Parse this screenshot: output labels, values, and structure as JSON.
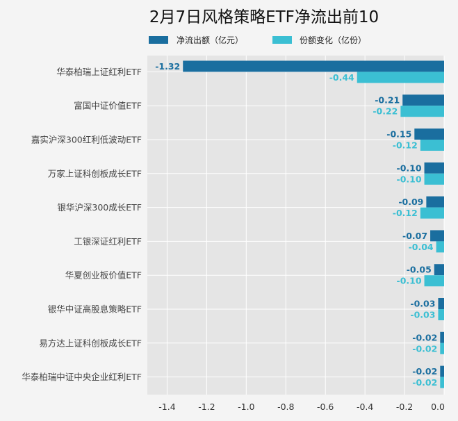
{
  "chart_data": {
    "type": "bar",
    "orientation": "horizontal",
    "title": "2月7日风格策略ETF净流出前10",
    "categories": [
      "华泰柏瑞上证红利ETF",
      "富国中证价值ETF",
      "嘉实沪深300红利低波动ETF",
      "万家上证科创板成长ETF",
      "银华沪深300成长ETF",
      "工银深证红利ETF",
      "华夏创业板价值ETF",
      "银华中证高股息策略ETF",
      "易方达上证科创板成长ETF",
      "华泰柏瑞中证中央企业红利ETF"
    ],
    "series": [
      {
        "name": "净流出额（亿元）",
        "color": "#1a6e9f",
        "values": [
          -1.32,
          -0.21,
          -0.15,
          -0.1,
          -0.09,
          -0.07,
          -0.05,
          -0.03,
          -0.02,
          -0.02
        ],
        "labels": [
          "-1.32",
          "-0.21",
          "-0.15",
          "-0.10",
          "-0.09",
          "-0.07",
          "-0.05",
          "-0.03",
          "-0.02",
          "-0.02"
        ]
      },
      {
        "name": "份额变化（亿份）",
        "color": "#3bbfd3",
        "values": [
          -0.44,
          -0.22,
          -0.12,
          -0.1,
          -0.12,
          -0.04,
          -0.1,
          -0.03,
          -0.02,
          -0.02
        ],
        "labels": [
          "-0.44",
          "-0.22",
          "-0.12",
          "-0.10",
          "-0.12",
          "-0.04",
          "-0.10",
          "-0.03",
          "-0.02",
          "-0.02"
        ]
      }
    ],
    "xlim": [
      -1.5,
      0.0
    ],
    "xticks": [
      -1.4,
      -1.2,
      -1.0,
      -0.8,
      -0.6,
      -0.4,
      -0.2,
      0.0
    ],
    "xtick_labels": [
      "-1.4",
      "-1.2",
      "-1.0",
      "-0.8",
      "-0.6",
      "-0.4",
      "-0.2",
      "0.0"
    ],
    "grid": true,
    "legend_position": "top",
    "plot_background": "#e5e5e5",
    "grid_color": "#ffffff"
  }
}
